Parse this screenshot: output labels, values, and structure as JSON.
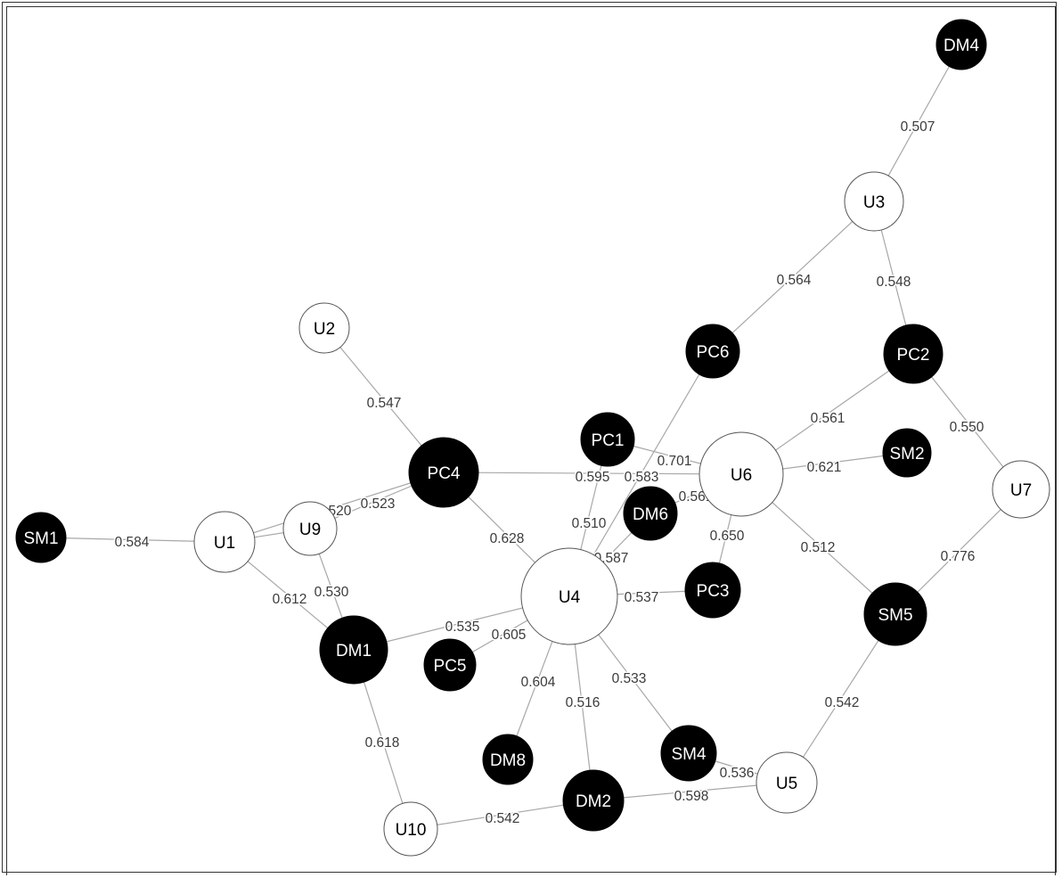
{
  "nodes": [
    {
      "id": "SM1",
      "label": "SM1",
      "kind": "dark"
    },
    {
      "id": "U1",
      "label": "U1",
      "kind": "user"
    },
    {
      "id": "U9",
      "label": "U9",
      "kind": "user"
    },
    {
      "id": "U2",
      "label": "U2",
      "kind": "user"
    },
    {
      "id": "PC4",
      "label": "PC4",
      "kind": "dark"
    },
    {
      "id": "DM1",
      "label": "DM1",
      "kind": "dark"
    },
    {
      "id": "PC5",
      "label": "PC5",
      "kind": "dark"
    },
    {
      "id": "U4",
      "label": "U4",
      "kind": "user"
    },
    {
      "id": "PC1",
      "label": "PC1",
      "kind": "dark"
    },
    {
      "id": "DM6",
      "label": "DM6",
      "kind": "dark"
    },
    {
      "id": "U6",
      "label": "U6",
      "kind": "user"
    },
    {
      "id": "PC6",
      "label": "PC6",
      "kind": "dark"
    },
    {
      "id": "PC3",
      "label": "PC3",
      "kind": "dark"
    },
    {
      "id": "U3",
      "label": "U3",
      "kind": "user"
    },
    {
      "id": "DM4",
      "label": "DM4",
      "kind": "dark"
    },
    {
      "id": "PC2",
      "label": "PC2",
      "kind": "dark"
    },
    {
      "id": "SM2",
      "label": "SM2",
      "kind": "dark"
    },
    {
      "id": "U7",
      "label": "U7",
      "kind": "user"
    },
    {
      "id": "SM5",
      "label": "SM5",
      "kind": "dark"
    },
    {
      "id": "U5",
      "label": "U5",
      "kind": "user"
    },
    {
      "id": "SM4",
      "label": "SM4",
      "kind": "dark"
    },
    {
      "id": "DM2",
      "label": "DM2",
      "kind": "dark"
    },
    {
      "id": "DM8",
      "label": "DM8",
      "kind": "dark"
    },
    {
      "id": "U10",
      "label": "U10",
      "kind": "user"
    }
  ],
  "edges": [
    {
      "source": "SM1",
      "target": "U1",
      "weight": "0.584"
    },
    {
      "source": "U1",
      "target": "U9",
      "weight": ""
    },
    {
      "source": "U1",
      "target": "DM1",
      "weight": "0.612"
    },
    {
      "source": "U1",
      "target": "PC4",
      "weight": "0.520"
    },
    {
      "source": "U9",
      "target": "PC4",
      "weight": "0.523"
    },
    {
      "source": "U9",
      "target": "DM1",
      "weight": "0.530"
    },
    {
      "source": "U2",
      "target": "PC4",
      "weight": "0.547"
    },
    {
      "source": "PC4",
      "target": "U6",
      "weight": "0.595"
    },
    {
      "source": "PC4",
      "target": "U4",
      "weight": "0.628"
    },
    {
      "source": "DM1",
      "target": "U4",
      "weight": "0.535"
    },
    {
      "source": "DM1",
      "target": "U10",
      "weight": "0.618"
    },
    {
      "source": "PC5",
      "target": "U4",
      "weight": "0.605"
    },
    {
      "source": "U4",
      "target": "PC1",
      "weight": "0.510"
    },
    {
      "source": "U4",
      "target": "PC6",
      "weight": "0.583"
    },
    {
      "source": "U4",
      "target": "DM6",
      "weight": "0.587"
    },
    {
      "source": "U4",
      "target": "PC3",
      "weight": "0.537"
    },
    {
      "source": "U4",
      "target": "DM8",
      "weight": "0.604"
    },
    {
      "source": "U4",
      "target": "DM2",
      "weight": "0.516"
    },
    {
      "source": "U4",
      "target": "SM4",
      "weight": "0.533"
    },
    {
      "source": "PC1",
      "target": "U6",
      "weight": "0.701"
    },
    {
      "source": "DM6",
      "target": "U6",
      "weight": "0.561"
    },
    {
      "source": "U6",
      "target": "PC3",
      "weight": "0.650"
    },
    {
      "source": "U6",
      "target": "PC2",
      "weight": "0.561"
    },
    {
      "source": "U6",
      "target": "SM2",
      "weight": "0.621"
    },
    {
      "source": "U6",
      "target": "SM5",
      "weight": "0.512"
    },
    {
      "source": "PC6",
      "target": "U3",
      "weight": "0.564"
    },
    {
      "source": "U3",
      "target": "DM4",
      "weight": "0.507"
    },
    {
      "source": "U3",
      "target": "PC2",
      "weight": "0.548"
    },
    {
      "source": "PC2",
      "target": "U7",
      "weight": "0.550"
    },
    {
      "source": "U7",
      "target": "SM5",
      "weight": "0.776"
    },
    {
      "source": "SM5",
      "target": "U5",
      "weight": "0.542"
    },
    {
      "source": "SM4",
      "target": "U5",
      "weight": "0.536"
    },
    {
      "source": "DM2",
      "target": "U5",
      "weight": "0.598"
    },
    {
      "source": "U10",
      "target": "DM2",
      "weight": "0.542"
    }
  ]
}
